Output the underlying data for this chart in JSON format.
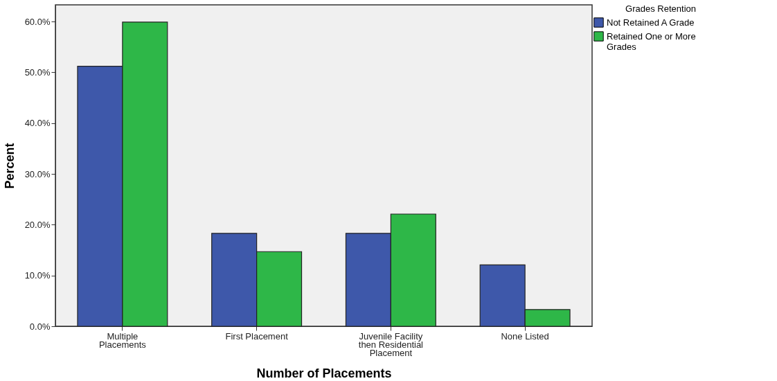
{
  "chart_data": {
    "type": "bar",
    "xlabel": "Number of Placements",
    "ylabel": "Percent",
    "legend_title": "Grades Retention",
    "legend": "top right",
    "grid": false,
    "categories": [
      "Multiple Placements",
      "First Placement",
      "Juvenile Facility then Residential Placement",
      "None Listed"
    ],
    "series": [
      {
        "name": "Not Retained A Grade",
        "color": "#3e58aa",
        "values": [
          51.2,
          18.3,
          18.3,
          12.1
        ]
      },
      {
        "name": "Retained One or More Grades",
        "color": "#2eb748",
        "values": [
          59.9,
          14.7,
          22.1,
          3.3
        ]
      }
    ],
    "ylim": [
      0,
      63.3
    ],
    "yticks": [
      {
        "value": 0,
        "label": "0.0%"
      },
      {
        "value": 10,
        "label": "10.0%"
      },
      {
        "value": 20,
        "label": "20.0%"
      },
      {
        "value": 30,
        "label": "30.0%"
      },
      {
        "value": 40,
        "label": "40.0%"
      },
      {
        "value": 50,
        "label": "50.0%"
      },
      {
        "value": 60,
        "label": "60.0%"
      }
    ]
  }
}
